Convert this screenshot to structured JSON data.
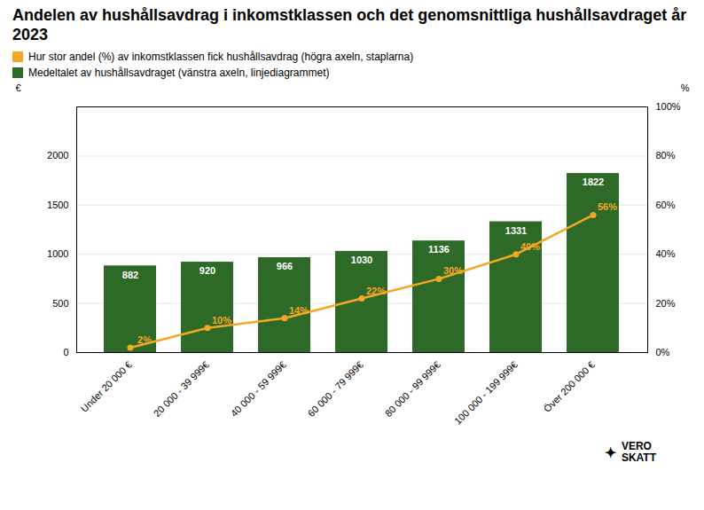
{
  "chart_data": {
    "type": "bar",
    "title": "Andelen av hushållsavdrag i inkomstklassen och det genomsnittliga hushållsavdraget år 2023",
    "categories": [
      "Under 20 000 €",
      "20 000 - 39 999€",
      "40 000 - 59 999€",
      "60 000 - 79 999€",
      "80 000 - 99 999€",
      "100 000 - 199 999€",
      "Över 200 000 €"
    ],
    "series": [
      {
        "name": "Hur stor andel (%) av inkomstklassen fick hushållsavdrag (högra axeln, staplarna)",
        "type": "line",
        "axis": "y2",
        "color": "#f5a623",
        "marker": "circle",
        "values": [
          2,
          10,
          14,
          22,
          30,
          40,
          56
        ],
        "value_labels": [
          "2%",
          "10%",
          "14%",
          "22%",
          "30%",
          "40%",
          "56%"
        ]
      },
      {
        "name": "Medeltalet av hushållsavdraget (vänstra axeln, linjediagrammet)",
        "type": "bar",
        "color": "#2d6a27",
        "values": [
          882,
          920,
          966,
          1030,
          1136,
          1331,
          1822
        ]
      }
    ],
    "ylabel": "€",
    "y2label": "%",
    "ylim": [
      0,
      2500
    ],
    "yticks": [
      0,
      500,
      1000,
      1500,
      2000
    ],
    "y2lim": [
      0,
      100
    ],
    "y2ticks": [
      {
        "value": 0,
        "label": "0%"
      },
      {
        "value": 20,
        "label": "20%"
      },
      {
        "value": 40,
        "label": "40%"
      },
      {
        "value": 60,
        "label": "60%"
      },
      {
        "value": 80,
        "label": "80%"
      },
      {
        "value": 100,
        "label": "100%"
      }
    ],
    "grid": true,
    "data_labels": true,
    "legend": "top left",
    "annotations": [
      "✦",
      "VERO",
      "SKATT"
    ]
  }
}
